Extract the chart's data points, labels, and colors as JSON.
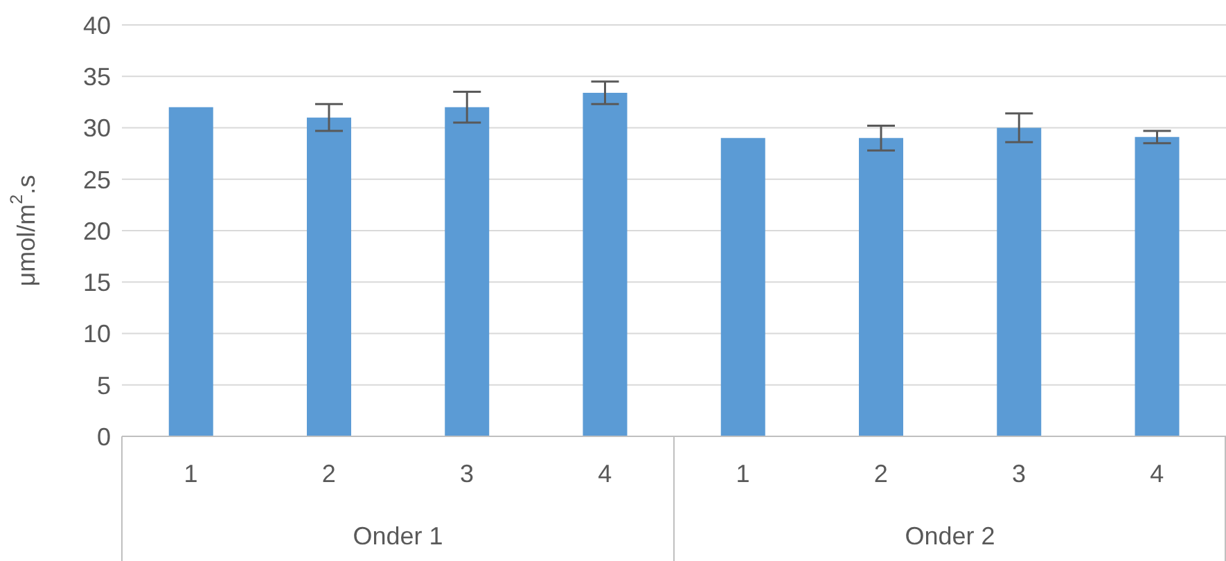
{
  "chart_data": {
    "type": "bar",
    "ylabel": "μmol/m$^{2}$.s",
    "categories": [
      "1",
      "2",
      "3",
      "4",
      "1",
      "2",
      "3",
      "4"
    ],
    "series": [
      {
        "color": "#5b9bd5",
        "values": [
          32,
          31,
          32,
          33.4,
          29,
          29,
          30,
          29.1
        ],
        "errors": [
          0,
          1.3,
          1.5,
          1.1,
          0,
          1.2,
          1.4,
          0.6
        ]
      }
    ],
    "annotations": [
      "Onder 1",
      "Onder 2"
    ],
    "ylim": [
      0,
      40
    ],
    "yticks": [
      0,
      5,
      10,
      15,
      20,
      25,
      30,
      35,
      40
    ],
    "grid": "y"
  }
}
